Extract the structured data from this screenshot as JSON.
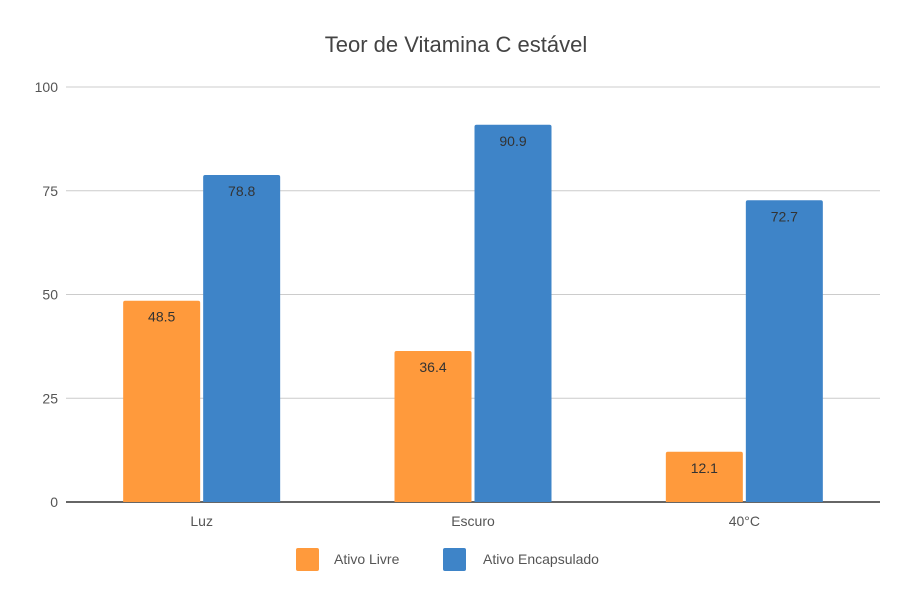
{
  "chart_data": {
    "type": "bar",
    "title": "Teor de Vitamina C estável",
    "xlabel": "",
    "ylabel": "",
    "categories": [
      "Luz",
      "Escuro",
      "40°C"
    ],
    "series": [
      {
        "name": "Ativo Livre",
        "values": [
          48.5,
          36.4,
          12.1
        ],
        "color": "#FF9A3C"
      },
      {
        "name": "Ativo Encapsulado",
        "values": [
          78.8,
          90.9,
          72.7
        ],
        "color": "#3E84C8"
      }
    ],
    "ylim": [
      0,
      100
    ],
    "yticks": [
      0,
      25,
      50,
      75,
      100
    ],
    "grid": true,
    "legend": "bottom",
    "data_labels": true
  }
}
